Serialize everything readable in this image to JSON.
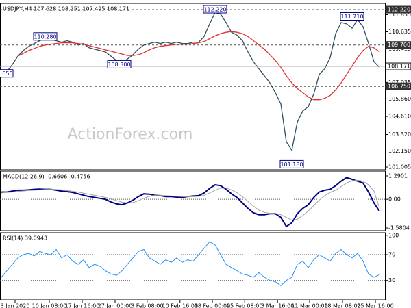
{
  "chart_data": [
    {
      "type": "line",
      "title": "USDJPY,H4  107.628 108.251 107.495 108.171",
      "watermark": "ActionForex.com",
      "xlim": [
        -0.25,
        70
      ],
      "ylim": [
        100.81,
        112.66
      ],
      "yticks": [
        111.855,
        110.635,
        109.415,
        107.035,
        {
          "value": 105.86,
          "label": "105.860"
        },
        {
          "value": 104.61,
          "label": "104.610"
        },
        {
          "value": 103.32,
          "label": "103.320"
        },
        {
          "value": 102.15,
          "label": "102.150"
        },
        101.005
      ],
      "levels": [
        {
          "value": 112.22,
          "label": "112.220"
        },
        {
          "value": 109.7,
          "label": "109.700"
        },
        {
          "value": 106.75,
          "label": "106.750"
        }
      ],
      "last_price": 108.171,
      "annotations": [
        {
          "x": 0,
          "value": 107.65,
          "label": "107.650"
        },
        {
          "x": 8,
          "value": 110.28,
          "label": "110.280"
        },
        {
          "x": 21.5,
          "value": 108.3,
          "label": "108.300"
        },
        {
          "x": 39,
          "value": 112.22,
          "label": "112.220"
        },
        {
          "x": 64,
          "value": 111.71,
          "label": "111.710"
        },
        {
          "x": 53,
          "value": 101.18,
          "label": "101.180"
        }
      ],
      "series": [
        {
          "color": "#2f4f5f",
          "values": [
            107.9,
            107.8,
            108.3,
            108.9,
            109.3,
            109.6,
            109.8,
            110.0,
            110.2,
            110.1,
            110.0,
            109.9,
            110.0,
            109.9,
            109.7,
            109.8,
            109.5,
            109.4,
            109.3,
            109.2,
            108.9,
            108.6,
            108.4,
            108.7,
            109.0,
            109.4,
            109.7,
            109.8,
            109.9,
            109.8,
            109.9,
            109.8,
            109.9,
            109.8,
            109.8,
            109.9,
            109.9,
            110.3,
            111.2,
            112.0,
            111.9,
            111.3,
            110.6,
            110.4,
            110.0,
            109.2,
            108.5,
            108.0,
            107.5,
            107.0,
            106.3,
            105.5,
            102.8,
            102.2,
            104.2,
            105.0,
            105.3,
            106.2,
            107.6,
            108.0,
            108.8,
            110.5,
            111.3,
            111.2,
            110.9,
            111.5,
            111.0,
            109.8,
            108.5,
            108.1
          ]
        },
        {
          "color": "#e03030",
          "values": [
            null,
            null,
            null,
            108.9,
            109.1,
            109.3,
            109.45,
            109.6,
            109.7,
            109.75,
            109.8,
            109.85,
            109.85,
            109.85,
            109.8,
            109.75,
            109.65,
            109.55,
            109.45,
            109.35,
            109.25,
            109.15,
            109.05,
            108.95,
            108.95,
            109.0,
            109.15,
            109.35,
            109.5,
            109.6,
            109.65,
            109.7,
            109.75,
            109.75,
            109.75,
            109.8,
            109.85,
            109.95,
            110.15,
            110.35,
            110.5,
            110.6,
            110.65,
            110.6,
            110.5,
            110.3,
            110.0,
            109.7,
            109.4,
            109.0,
            108.6,
            108.1,
            107.5,
            107.0,
            106.6,
            106.3,
            106.0,
            105.8,
            105.8,
            105.9,
            106.1,
            106.5,
            107.0,
            107.6,
            108.2,
            108.8,
            109.3,
            109.6,
            109.5,
            109.2
          ]
        }
      ]
    },
    {
      "type": "line",
      "title": "MACD(12,26,9) -0.6606 -0.4756",
      "xlim": [
        -0.25,
        70
      ],
      "ylim": [
        -1.731,
        1.554
      ],
      "yticks": [
        1.2901,
        {
          "value": 0,
          "label": "0.00"
        },
        -1.5804
      ],
      "levels": [
        0
      ],
      "series": [
        {
          "color": "#000080",
          "width": 2,
          "values": [
            0.4,
            0.4,
            0.45,
            0.5,
            0.5,
            0.52,
            0.55,
            0.56,
            0.55,
            0.55,
            0.5,
            0.45,
            0.42,
            0.38,
            0.3,
            0.22,
            0.15,
            0.1,
            0.05,
            0.0,
            -0.15,
            -0.25,
            -0.3,
            -0.2,
            -0.05,
            0.15,
            0.3,
            0.28,
            0.22,
            0.2,
            0.15,
            0.15,
            0.12,
            0.1,
            0.15,
            0.18,
            0.2,
            0.35,
            0.6,
            0.8,
            0.75,
            0.55,
            0.3,
            0.1,
            -0.2,
            -0.5,
            -0.75,
            -0.85,
            -0.85,
            -0.8,
            -0.8,
            -1.0,
            -1.5,
            -1.3,
            -0.8,
            -0.5,
            -0.3,
            0.1,
            0.4,
            0.5,
            0.55,
            0.75,
            1.0,
            1.2,
            1.1,
            1.0,
            0.9,
            0.4,
            -0.2,
            -0.6606
          ]
        },
        {
          "color": "#a0a0a0",
          "width": 1,
          "values": [
            0.35,
            0.38,
            0.4,
            0.43,
            0.46,
            0.48,
            0.5,
            0.52,
            0.54,
            0.55,
            0.54,
            0.52,
            0.48,
            0.44,
            0.4,
            0.34,
            0.28,
            0.22,
            0.16,
            0.1,
            0.03,
            -0.07,
            -0.16,
            -0.2,
            -0.18,
            -0.08,
            0.06,
            0.16,
            0.22,
            0.22,
            0.2,
            0.18,
            0.16,
            0.14,
            0.13,
            0.14,
            0.16,
            0.22,
            0.35,
            0.5,
            0.62,
            0.62,
            0.52,
            0.36,
            0.14,
            -0.12,
            -0.38,
            -0.6,
            -0.72,
            -0.78,
            -0.8,
            -0.85,
            -1.0,
            -1.15,
            -1.1,
            -0.9,
            -0.65,
            -0.35,
            -0.05,
            0.2,
            0.38,
            0.5,
            0.7,
            0.9,
            1.02,
            1.05,
            1.0,
            0.8,
            0.45,
            -0.4756
          ]
        }
      ]
    },
    {
      "type": "line",
      "title": "RSI(14) 39.0943",
      "xlim": [
        -0.25,
        70
      ],
      "ylim": [
        0,
        104
      ],
      "yticks": [
        100,
        70,
        30
      ],
      "levels": [
        70,
        30
      ],
      "xticks": [
        {
          "value": 2.5,
          "label": "3 Jan 2020"
        },
        {
          "value": 8.75,
          "label": "10 Jan 08:00"
        },
        {
          "value": 14.75,
          "label": "17 Jan 16:00"
        },
        {
          "value": 20.75,
          "label": "27 Jan 00:00"
        },
        {
          "value": 26.6,
          "label": "3 Feb 08:00"
        },
        {
          "value": 32.6,
          "label": "10 Feb 16:00"
        },
        {
          "value": 38.5,
          "label": "18 Feb 00:00"
        },
        {
          "value": 44.4,
          "label": "25 Feb 08:00"
        },
        {
          "value": 50.4,
          "label": "3 Mar 16:00"
        },
        {
          "value": 56.25,
          "label": "11 Mar 00:00"
        },
        {
          "value": 62.25,
          "label": "18 Mar 08:00"
        },
        {
          "value": 68.25,
          "label": "25 Mar 16:00"
        }
      ],
      "series": [
        {
          "color": "#1e90ff",
          "width": 1,
          "values": [
            35,
            45,
            55,
            65,
            70,
            72,
            68,
            75,
            72,
            70,
            78,
            65,
            70,
            60,
            55,
            62,
            50,
            55,
            52,
            45,
            40,
            38,
            45,
            55,
            65,
            75,
            78,
            65,
            60,
            55,
            62,
            58,
            65,
            58,
            62,
            60,
            70,
            80,
            90,
            85,
            70,
            55,
            50,
            45,
            40,
            38,
            35,
            42,
            35,
            30,
            28,
            22,
            30,
            35,
            55,
            60,
            50,
            62,
            70,
            65,
            60,
            72,
            78,
            70,
            65,
            72,
            60,
            40,
            35,
            39.0943
          ]
        }
      ]
    }
  ]
}
